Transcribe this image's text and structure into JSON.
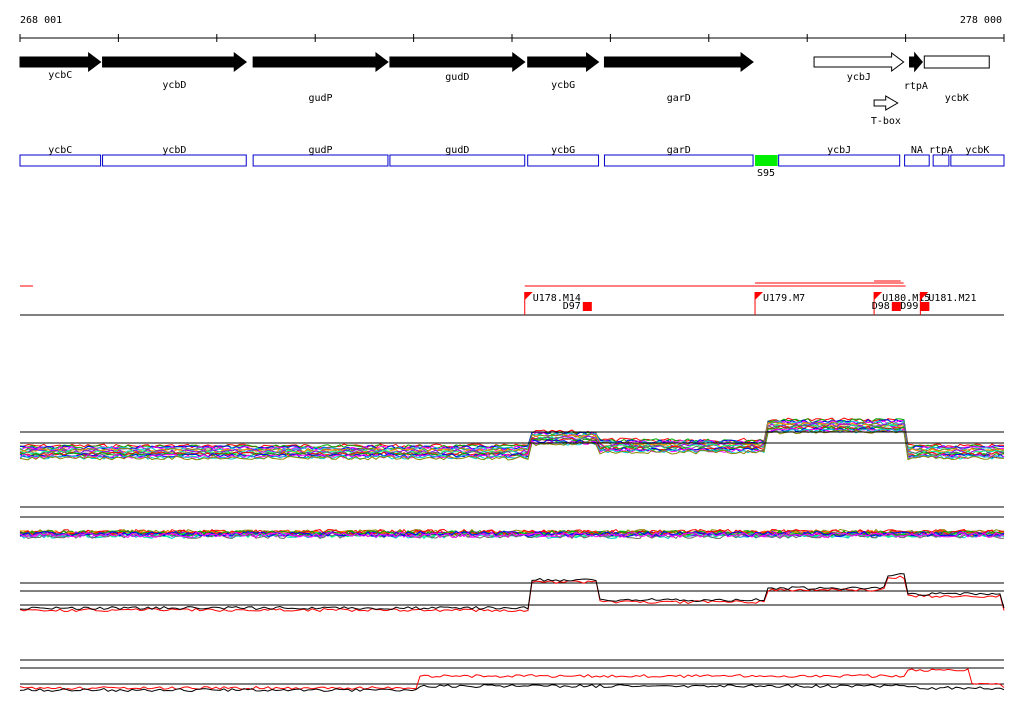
{
  "coordinates": {
    "start_label": "268 001",
    "end_label": "278 000",
    "start": 268001,
    "end": 278000
  },
  "genes": [
    {
      "name": "ycbC",
      "strand": "+",
      "filled": true,
      "start": 268001,
      "end": 268820
    },
    {
      "name": "ycbD",
      "strand": "+",
      "filled": true,
      "start": 268840,
      "end": 270300
    },
    {
      "name": "gudP",
      "strand": "+",
      "filled": true,
      "start": 270370,
      "end": 271740
    },
    {
      "name": "gudD",
      "strand": "+",
      "filled": true,
      "start": 271760,
      "end": 273130
    },
    {
      "name": "ycbG",
      "strand": "+",
      "filled": true,
      "start": 273160,
      "end": 273880
    },
    {
      "name": "garD",
      "strand": "+",
      "filled": true,
      "start": 273940,
      "end": 275450
    },
    {
      "name": "ycbJ",
      "strand": "+",
      "filled": false,
      "start": 276070,
      "end": 276980
    },
    {
      "name": "T-box",
      "strand": "+",
      "filled": false,
      "start": 276680,
      "end": 276920
    },
    {
      "name": "rtpA",
      "strand": "+",
      "filled": true,
      "start": 277040,
      "end": 277170
    },
    {
      "name": "ycbK",
      "strand": "",
      "filled": false,
      "start": 277190,
      "end": 277850
    }
  ],
  "operons": [
    {
      "name": "ycbC",
      "start": 268001,
      "end": 268820
    },
    {
      "name": "ycbD",
      "start": 268840,
      "end": 270300
    },
    {
      "name": "gudP",
      "start": 270370,
      "end": 271740
    },
    {
      "name": "gudD",
      "start": 271760,
      "end": 273130
    },
    {
      "name": "ycbG",
      "start": 273160,
      "end": 273880
    },
    {
      "name": "garD",
      "start": 273940,
      "end": 275450
    },
    {
      "name": "ycbJ",
      "start": 275710,
      "end": 276940
    },
    {
      "name": "NA",
      "start": 276990,
      "end": 277240
    },
    {
      "name": "rtpA",
      "start": 277280,
      "end": 277440
    },
    {
      "name": "ycbK",
      "start": 277460,
      "end": 278000
    }
  ],
  "segments": [
    {
      "label": "S95",
      "start": 275470,
      "end": 275700,
      "color": "#00ee00"
    }
  ],
  "upshifts": [
    {
      "label": "U178.M14",
      "pos": 273130
    },
    {
      "label": "U179.M7",
      "pos": 275470
    },
    {
      "label": "U180.M15",
      "pos": 276680
    },
    {
      "label": "U181.M21",
      "pos": 277150
    }
  ],
  "downshifts": [
    {
      "label": "D97",
      "pos": 273720
    },
    {
      "label": "D98",
      "pos": 276860
    },
    {
      "label": "D99",
      "pos": 277150
    }
  ],
  "colors": {
    "accent_red": "#ff0000",
    "operon_outline": "#0000cc",
    "segment_green": "#00ee00",
    "gene_fill": "#000000"
  }
}
